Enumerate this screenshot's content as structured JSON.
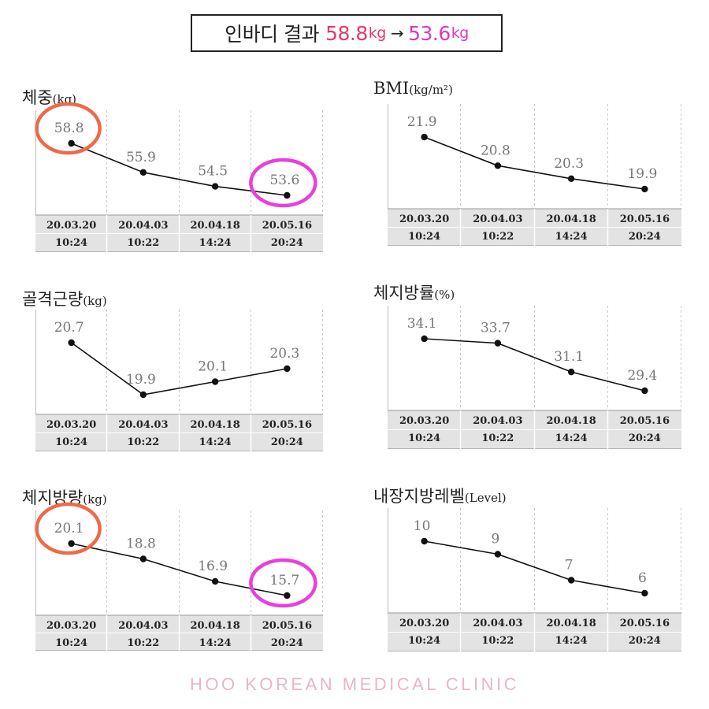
{
  "header": {
    "title_label": "인바디 결과",
    "start_value": "58.8",
    "start_unit": "kg",
    "arrow": "→",
    "end_value": "53.6",
    "end_unit": "kg",
    "start_color": "#e5396b",
    "end_color": "#d83ac8"
  },
  "footer": {
    "text": "HOO KOREAN MEDICAL CLINIC",
    "color": "#e7b5cc"
  },
  "highlight_colors": {
    "start_circle": "#ee6a48",
    "end_circle": "#e93fdc"
  },
  "chart_data": [
    {
      "type": "line",
      "title": "체중",
      "unit": "(kg)",
      "categories": [
        [
          "20.03.20",
          "10:24"
        ],
        [
          "20.04.03",
          "10:22"
        ],
        [
          "20.04.18",
          "14:24"
        ],
        [
          "20.05.16",
          "20:24"
        ]
      ],
      "values": [
        58.8,
        55.9,
        54.5,
        53.6
      ],
      "labels": [
        "58.8",
        "55.9",
        "54.5",
        "53.6"
      ],
      "highlight": {
        "start": true,
        "end": true
      }
    },
    {
      "type": "line",
      "title": "BMI",
      "unit": "(kg/m²)",
      "categories": [
        [
          "20.03.20",
          "10:24"
        ],
        [
          "20.04.03",
          "10:22"
        ],
        [
          "20.04.18",
          "14:24"
        ],
        [
          "20.05.16",
          "20:24"
        ]
      ],
      "values": [
        21.9,
        20.8,
        20.3,
        19.9
      ],
      "labels": [
        "21.9",
        "20.8",
        "20.3",
        "19.9"
      ]
    },
    {
      "type": "line",
      "title": "골격근량",
      "unit": "(kg)",
      "categories": [
        [
          "20.03.20",
          "10:24"
        ],
        [
          "20.04.03",
          "10:22"
        ],
        [
          "20.04.18",
          "14:24"
        ],
        [
          "20.05.16",
          "20:24"
        ]
      ],
      "values": [
        20.7,
        19.9,
        20.1,
        20.3
      ],
      "labels": [
        "20.7",
        "19.9",
        "20.1",
        "20.3"
      ]
    },
    {
      "type": "line",
      "title": "체지방률",
      "unit": "(%)",
      "categories": [
        [
          "20.03.20",
          "10:24"
        ],
        [
          "20.04.03",
          "10:22"
        ],
        [
          "20.04.18",
          "14:24"
        ],
        [
          "20.05.16",
          "20:24"
        ]
      ],
      "values": [
        34.1,
        33.7,
        31.1,
        29.4
      ],
      "labels": [
        "34.1",
        "33.7",
        "31.1",
        "29.4"
      ]
    },
    {
      "type": "line",
      "title": "체지방량",
      "unit": "(kg)",
      "categories": [
        [
          "20.03.20",
          "10:24"
        ],
        [
          "20.04.03",
          "10:22"
        ],
        [
          "20.04.18",
          "14:24"
        ],
        [
          "20.05.16",
          "20:24"
        ]
      ],
      "values": [
        20.1,
        18.8,
        16.9,
        15.7
      ],
      "labels": [
        "20.1",
        "18.8",
        "16.9",
        "15.7"
      ],
      "highlight": {
        "start": true,
        "end": true
      }
    },
    {
      "type": "line",
      "title": "내장지방레벨",
      "unit": "(Level)",
      "categories": [
        [
          "20.03.20",
          "10:24"
        ],
        [
          "20.04.03",
          "10:22"
        ],
        [
          "20.04.18",
          "14:24"
        ],
        [
          "20.05.16",
          "20:24"
        ]
      ],
      "values": [
        10,
        9,
        7,
        6
      ],
      "labels": [
        "10",
        "9",
        "7",
        "6"
      ]
    }
  ]
}
